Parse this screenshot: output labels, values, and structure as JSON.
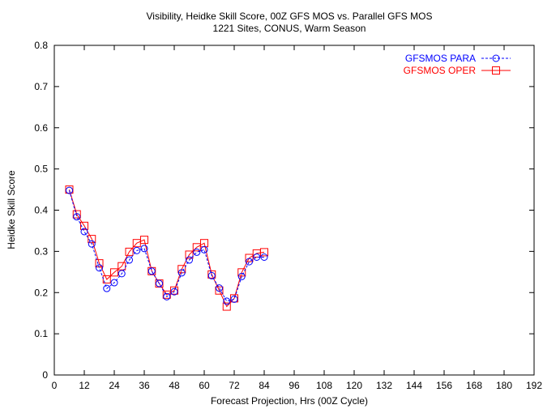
{
  "chart_data": {
    "type": "line",
    "title": "Visibility, Heidke Skill Score, 00Z GFS MOS vs. Parallel GFS MOS",
    "subtitle": "1221 Sites, CONUS, Warm Season",
    "xlabel": "Forecast Projection, Hrs (00Z Cycle)",
    "ylabel": "Heidke Skill Score",
    "xlim": [
      0,
      192
    ],
    "ylim": [
      0,
      0.8
    ],
    "xticks": [
      0,
      12,
      24,
      36,
      48,
      60,
      72,
      84,
      96,
      108,
      120,
      132,
      144,
      156,
      168,
      180,
      192
    ],
    "yticks": [
      0,
      0.1,
      0.2,
      0.3,
      0.4,
      0.5,
      0.6,
      0.7,
      0.8
    ],
    "ytick_labels": [
      "0",
      "0.1",
      "0.2",
      "0.3",
      "0.4",
      "0.5",
      "0.6",
      "0.7",
      "0.8"
    ],
    "grid": false,
    "legend_position": "top-right",
    "x": [
      6,
      9,
      12,
      15,
      18,
      21,
      24,
      27,
      30,
      33,
      36,
      39,
      42,
      45,
      48,
      51,
      54,
      57,
      60,
      63,
      66,
      69,
      72,
      75,
      78,
      81,
      84
    ],
    "series": [
      {
        "name": "GFSMOS PARA",
        "color": "#0000ff",
        "marker": "circle",
        "line_style": "dashed",
        "values": [
          0.448,
          0.384,
          0.348,
          0.318,
          0.26,
          0.21,
          0.224,
          0.246,
          0.279,
          0.302,
          0.307,
          0.252,
          0.222,
          0.19,
          0.202,
          0.248,
          0.279,
          0.298,
          0.304,
          0.241,
          0.211,
          0.179,
          0.184,
          0.239,
          0.275,
          0.286,
          0.286
        ]
      },
      {
        "name": "GFSMOS OPER",
        "color": "#ff0000",
        "marker": "square",
        "line_style": "solid",
        "values": [
          0.45,
          0.39,
          0.362,
          0.33,
          0.271,
          0.232,
          0.249,
          0.264,
          0.299,
          0.32,
          0.328,
          0.252,
          0.222,
          0.195,
          0.205,
          0.257,
          0.292,
          0.31,
          0.32,
          0.244,
          0.205,
          0.166,
          0.186,
          0.249,
          0.284,
          0.295,
          0.298
        ]
      }
    ]
  }
}
